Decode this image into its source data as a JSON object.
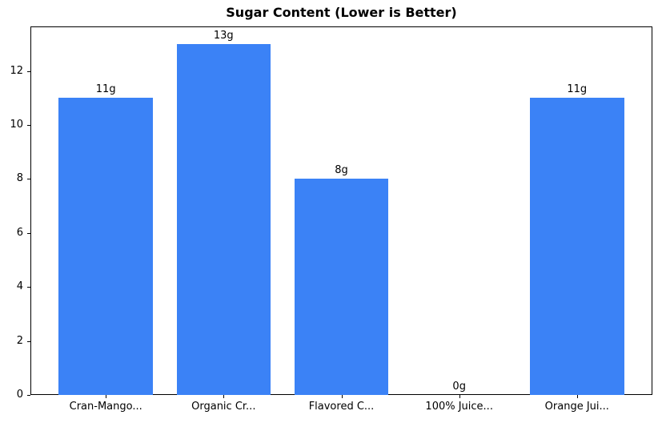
{
  "chart_data": {
    "type": "bar",
    "title": "Sugar Content (Lower is Better)",
    "categories": [
      "Cran-Mango...",
      "Organic Cr...",
      "Flavored C...",
      "100% Juice...",
      "Orange Jui..."
    ],
    "values": [
      11,
      13,
      8,
      0,
      11
    ],
    "bar_labels": [
      "11g",
      "13g",
      "8g",
      "0g",
      "11g"
    ],
    "xlabel": "",
    "ylabel": "",
    "yticks": [
      0,
      2,
      4,
      6,
      8,
      10,
      12
    ],
    "ylim": [
      0,
      13.65
    ],
    "bar_color": "#3b82f6",
    "grid": false,
    "legend": null
  }
}
